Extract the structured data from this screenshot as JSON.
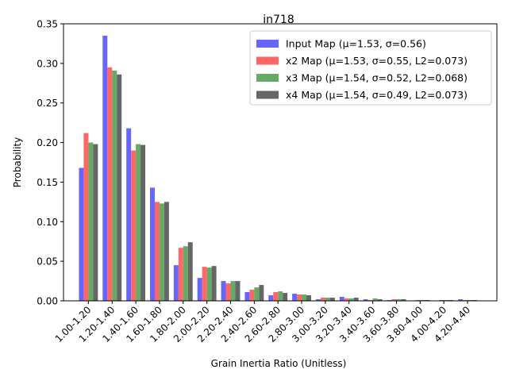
{
  "chart_data": {
    "type": "bar",
    "title": "in718",
    "xlabel": "Grain Inertia Ratio (Unitless)",
    "ylabel": "Probability",
    "ylim": [
      0,
      0.35
    ],
    "yticks": [
      "0.00",
      "0.05",
      "0.10",
      "0.15",
      "0.20",
      "0.25",
      "0.30",
      "0.35"
    ],
    "grid": false,
    "legend_position": "top-right",
    "categories": [
      "1.00-1.20",
      "1.20-1.40",
      "1.40-1.60",
      "1.60-1.80",
      "1.80-2.00",
      "2.00-2.20",
      "2.20-2.40",
      "2.40-2.60",
      "2.60-2.80",
      "2.80-3.00",
      "3.00-3.20",
      "3.20-3.40",
      "3.40-3.60",
      "3.60-3.80",
      "3.80-4.00",
      "4.00-4.20",
      "4.20-4.40"
    ],
    "series": [
      {
        "name": "Input Map (μ=1.53, σ=0.56)",
        "color": "#6666ff",
        "values": [
          0.168,
          0.335,
          0.218,
          0.143,
          0.045,
          0.029,
          0.025,
          0.011,
          0.007,
          0.009,
          0.002,
          0.005,
          0.002,
          0.001,
          0.0005,
          0.0005,
          0.002
        ]
      },
      {
        "name": "x2 Map (μ=1.53, σ=0.55, L2=0.073)",
        "color": "#ff6666",
        "values": [
          0.212,
          0.295,
          0.19,
          0.125,
          0.067,
          0.043,
          0.022,
          0.014,
          0.011,
          0.008,
          0.004,
          0.003,
          0.001,
          0.002,
          0.001,
          0.001,
          0.001
        ]
      },
      {
        "name": "x3 Map (μ=1.54, σ=0.52, L2=0.068)",
        "color": "#66aa66",
        "values": [
          0.2,
          0.291,
          0.198,
          0.123,
          0.069,
          0.042,
          0.025,
          0.017,
          0.012,
          0.008,
          0.004,
          0.003,
          0.003,
          0.002,
          0.001,
          0.001,
          0.001
        ]
      },
      {
        "name": "x4 Map (μ=1.54, σ=0.49, L2=0.073)",
        "color": "#666666",
        "values": [
          0.198,
          0.286,
          0.197,
          0.125,
          0.074,
          0.044,
          0.025,
          0.02,
          0.01,
          0.007,
          0.004,
          0.004,
          0.002,
          0.002,
          0.001,
          0.001,
          0.001
        ]
      }
    ]
  }
}
